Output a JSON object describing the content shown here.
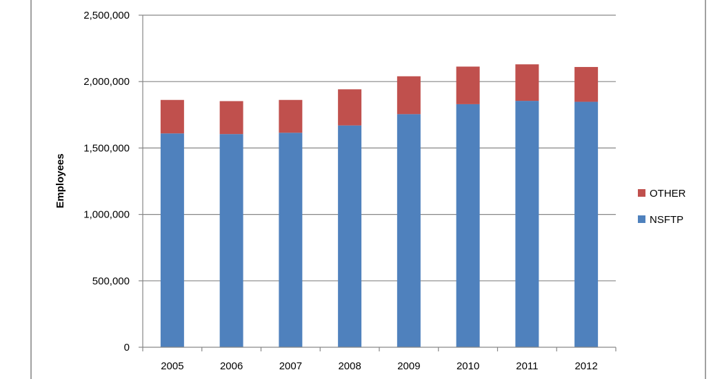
{
  "chart_data": {
    "type": "bar",
    "stacked": true,
    "categories": [
      "2005",
      "2006",
      "2007",
      "2008",
      "2009",
      "2010",
      "2011",
      "2012"
    ],
    "series": [
      {
        "name": "NSFTP",
        "color": "#4F81BD",
        "values": [
          1610000,
          1605000,
          1615000,
          1670000,
          1755000,
          1830000,
          1855000,
          1848000
        ]
      },
      {
        "name": "OTHER",
        "color": "#C0504D",
        "values": [
          252000,
          248000,
          247000,
          272000,
          285000,
          283000,
          275000,
          262000
        ]
      }
    ],
    "title": "",
    "xlabel": "",
    "ylabel": "Employees",
    "ylim": [
      0,
      2500000
    ],
    "yticks": [
      0,
      500000,
      1000000,
      1500000,
      2000000,
      2500000
    ],
    "ytick_labels": [
      "0",
      "500,000",
      "1,000,000",
      "1,500,000",
      "2,000,000",
      "2,500,000"
    ],
    "grid": true,
    "legend": {
      "position": "right",
      "entries": [
        "OTHER",
        "NSFTP"
      ]
    }
  }
}
